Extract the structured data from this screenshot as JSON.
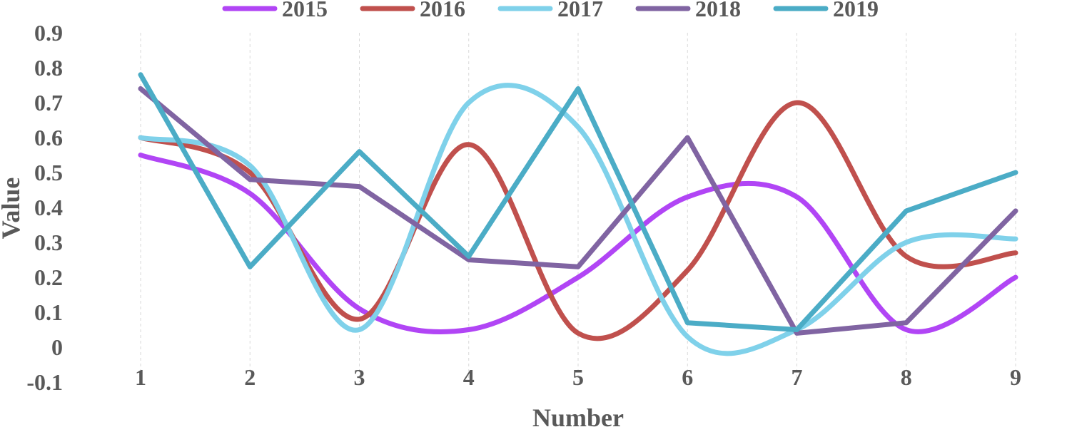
{
  "chart_data": {
    "type": "line",
    "smooth_series": [
      "2015",
      "2016",
      "2017"
    ],
    "straight_series": [
      "2018",
      "2019"
    ],
    "x": [
      1,
      2,
      3,
      4,
      5,
      6,
      7,
      8,
      9
    ],
    "x_tick_labels": [
      "1",
      "2",
      "3",
      "4",
      "5",
      "6",
      "7",
      "8",
      "9"
    ],
    "y_tick_labels": [
      "-0.1",
      "0",
      "0.1",
      "0.2",
      "0.3",
      "0.4",
      "0.5",
      "0.6",
      "0.7",
      "0.8",
      "0.9"
    ],
    "ylim": [
      -0.1,
      0.9
    ],
    "xlim": [
      1,
      9
    ],
    "xlabel": "Number",
    "ylabel": "Value",
    "grid": "vertical-dashed",
    "legend_placement": "top",
    "series": [
      {
        "name": "2015",
        "color": "#b145f5",
        "values": [
          0.55,
          0.44,
          0.11,
          0.05,
          0.2,
          0.43,
          0.43,
          0.05,
          0.2
        ]
      },
      {
        "name": "2016",
        "color": "#c0504d",
        "values": [
          0.6,
          0.5,
          0.08,
          0.58,
          0.04,
          0.22,
          0.7,
          0.26,
          0.27
        ]
      },
      {
        "name": "2017",
        "color": "#7fd1ea",
        "values": [
          0.6,
          0.52,
          0.05,
          0.7,
          0.63,
          0.03,
          0.05,
          0.3,
          0.31
        ]
      },
      {
        "name": "2018",
        "color": "#8064a2",
        "values": [
          0.74,
          0.48,
          0.46,
          0.25,
          0.23,
          0.6,
          0.04,
          0.07,
          0.39
        ]
      },
      {
        "name": "2019",
        "color": "#4bacc6",
        "values": [
          0.78,
          0.23,
          0.56,
          0.26,
          0.74,
          0.07,
          0.05,
          0.39,
          0.5
        ]
      }
    ]
  }
}
